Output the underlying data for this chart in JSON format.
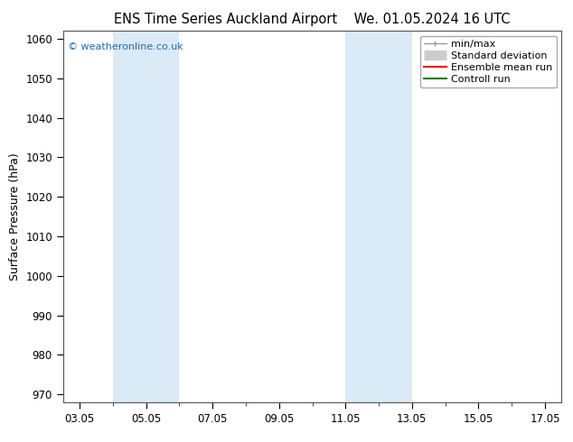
{
  "title1": "ENS Time Series Auckland Airport",
  "title2": "We. 01.05.2024 16 UTC",
  "ylabel": "Surface Pressure (hPa)",
  "ylim": [
    968,
    1062
  ],
  "yticks": [
    970,
    980,
    990,
    1000,
    1010,
    1020,
    1030,
    1040,
    1050,
    1060
  ],
  "xlim": [
    2.5,
    17.5
  ],
  "xtick_labels": [
    "03.05",
    "05.05",
    "07.05",
    "09.05",
    "11.05",
    "13.05",
    "15.05",
    "17.05"
  ],
  "xtick_positions": [
    3,
    5,
    7,
    9,
    11,
    13,
    15,
    17
  ],
  "shaded_bands": [
    {
      "start": 4.0,
      "end": 6.0,
      "color": "#daeaf7"
    },
    {
      "start": 11.0,
      "end": 13.0,
      "color": "#daeaf7"
    }
  ],
  "watermark": "© weatheronline.co.uk",
  "watermark_color": "#1a6bbf",
  "legend_labels": [
    "min/max",
    "Standard deviation",
    "Ensemble mean run",
    "Controll run"
  ],
  "legend_colors": [
    "#aaaaaa",
    "#cccccc",
    "red",
    "green"
  ],
  "bg_color": "#ffffff",
  "plot_bg_color": "#ffffff",
  "title_fontsize": 10.5,
  "axis_label_fontsize": 9,
  "tick_fontsize": 8.5,
  "legend_fontsize": 8
}
